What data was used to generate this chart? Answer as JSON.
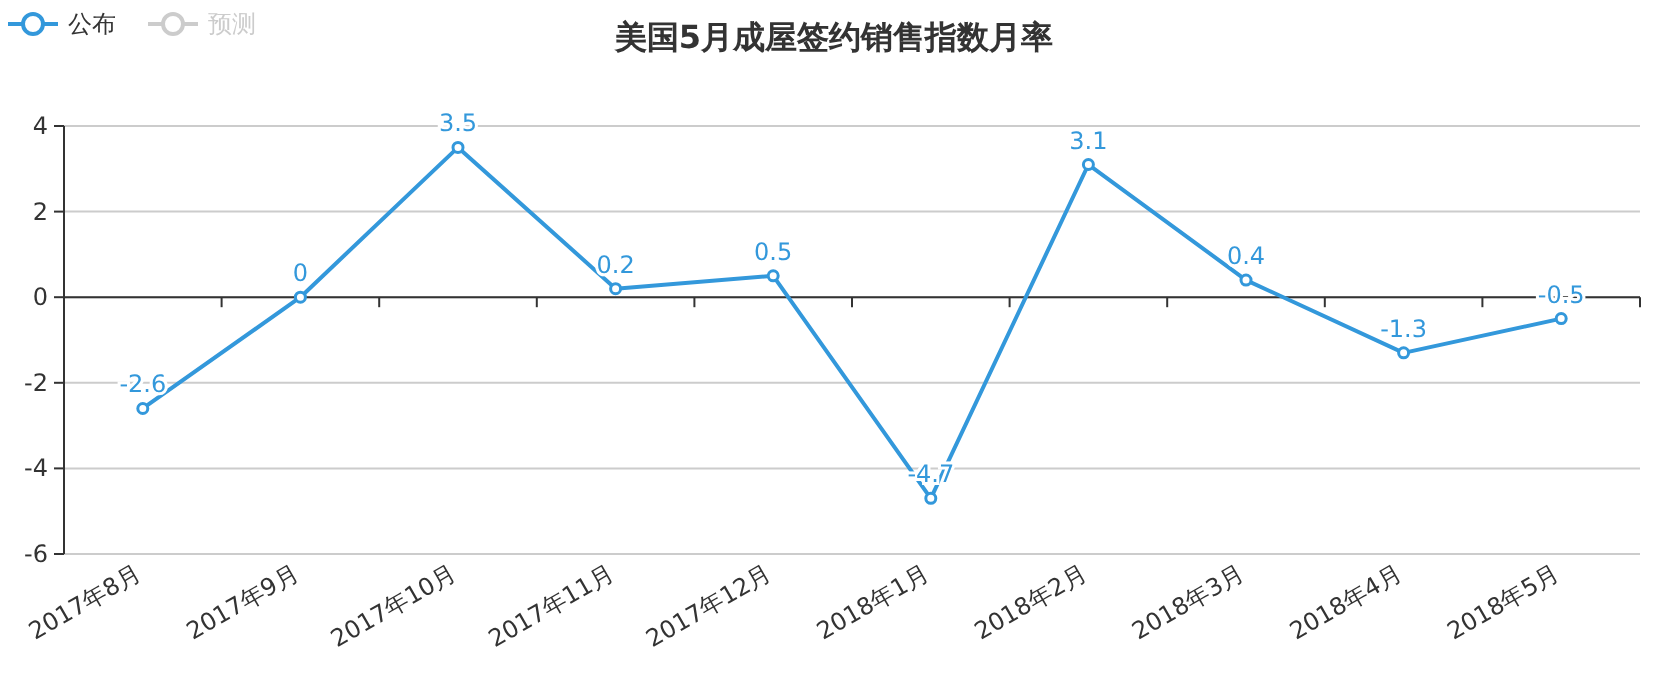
{
  "chart_data": {
    "type": "line",
    "title": "美国5月成屋签约销售指数月率",
    "categories": [
      "2017年8月",
      "2017年9月",
      "2017年10月",
      "2017年11月",
      "2017年12月",
      "2018年1月",
      "2018年2月",
      "2018年3月",
      "2018年4月",
      "2018年5月"
    ],
    "series": [
      {
        "name": "公布",
        "color": "#3398db",
        "values": [
          -2.6,
          0,
          3.5,
          0.2,
          0.5,
          -4.7,
          3.1,
          0.4,
          -1.3,
          -0.5
        ]
      },
      {
        "name": "预测",
        "color": "#cccccc",
        "values": [
          null,
          null,
          null,
          null,
          null,
          null,
          null,
          null,
          null,
          null
        ]
      }
    ],
    "ylim": [
      -6,
      4
    ],
    "yticks": [
      -6,
      -4,
      -2,
      0,
      2,
      4
    ],
    "grid": "y",
    "legend": "top left",
    "marker": "circle",
    "line_style": "solid",
    "data_labels": true
  }
}
